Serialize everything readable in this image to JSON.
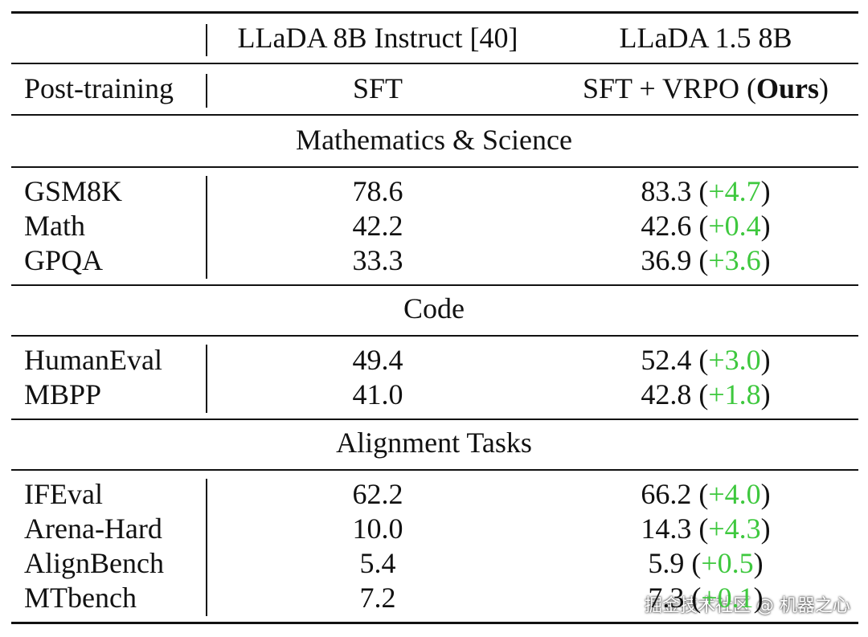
{
  "header": {
    "models": [
      "LLaDA 8B Instruct [40]",
      "LLaDA 1.5 8B"
    ],
    "post_training_label": "Post-training",
    "baseline_method": "SFT",
    "ours_method": "SFT + VRPO",
    "ours_tag": "Ours"
  },
  "sections": [
    {
      "title": "Mathematics & Science",
      "rows": [
        {
          "benchmark": "GSM8K",
          "baseline": "78.6",
          "ours": "83.3",
          "delta": "+4.7"
        },
        {
          "benchmark": "Math",
          "baseline": "42.2",
          "ours": "42.6",
          "delta": "+0.4"
        },
        {
          "benchmark": "GPQA",
          "baseline": "33.3",
          "ours": "36.9",
          "delta": "+3.6"
        }
      ]
    },
    {
      "title": "Code",
      "rows": [
        {
          "benchmark": "HumanEval",
          "baseline": "49.4",
          "ours": "52.4",
          "delta": "+3.0"
        },
        {
          "benchmark": "MBPP",
          "baseline": "41.0",
          "ours": "42.8",
          "delta": "+1.8"
        }
      ]
    },
    {
      "title": "Alignment Tasks",
      "rows": [
        {
          "benchmark": "IFEval",
          "baseline": "62.2",
          "ours": "66.2",
          "delta": "+4.0"
        },
        {
          "benchmark": "Arena-Hard",
          "baseline": "10.0",
          "ours": "14.3",
          "delta": "+4.3"
        },
        {
          "benchmark": "AlignBench",
          "baseline": "5.4",
          "ours": "5.9",
          "delta": "+0.5"
        },
        {
          "benchmark": "MTbench",
          "baseline": "7.2",
          "ours": "7.3",
          "delta": "+0.1"
        }
      ]
    }
  ],
  "watermark": "掘金技术社区 @ 机器之心"
}
